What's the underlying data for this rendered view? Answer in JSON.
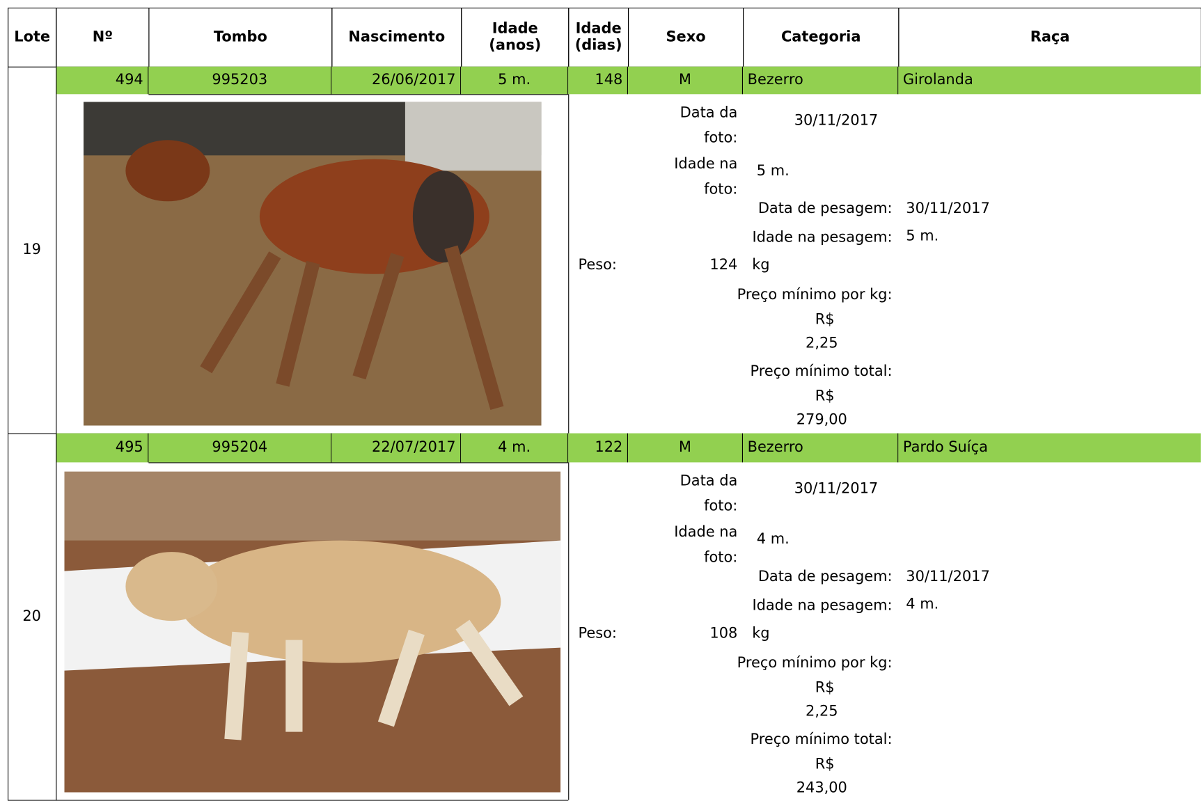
{
  "header": {
    "columns": [
      "Lote",
      "Nº",
      "Tombo",
      "Nascimento",
      "Idade (anos)",
      "Idade (dias)",
      "Sexo",
      "Categoria",
      "Raça"
    ]
  },
  "lots": [
    {
      "lote": "19",
      "numero": "494",
      "tombo": "995203",
      "nascimento": "26/06/2017",
      "idade_anos": "5 m.",
      "idade_dias": "148",
      "sexo": "M",
      "categoria": "Bezerro",
      "raca": "Girolanda",
      "data_foto_label": "Data da foto:",
      "data_foto": "30/11/2017",
      "idade_foto_label": "Idade na foto:",
      "idade_foto": "5 m.",
      "data_pesagem_label": "Data de pesagem:",
      "data_pesagem": "30/11/2017",
      "idade_pesagem_label": "Idade na pesagem:",
      "idade_pesagem": "5 m.",
      "peso_label": "Peso:",
      "peso": "124",
      "peso_unit": "kg",
      "preco_kg_label": "Preço mínimo por kg:",
      "preco_kg_currency": "R$",
      "preco_kg": "2,25",
      "preco_total_label": "Preço mínimo total:",
      "preco_total_currency": "R$",
      "preco_total": "279,00"
    },
    {
      "lote": "20",
      "numero": "495",
      "tombo": "995204",
      "nascimento": "22/07/2017",
      "idade_anos": "4 m.",
      "idade_dias": "122",
      "sexo": "M",
      "categoria": "Bezerro",
      "raca": "Pardo Suíça",
      "data_foto_label": "Data da foto:",
      "data_foto": "30/11/2017",
      "idade_foto_label": "Idade na foto:",
      "idade_foto": "4 m.",
      "data_pesagem_label": "Data de pesagem:",
      "data_pesagem": "30/11/2017",
      "idade_pesagem_label": "Idade na pesagem:",
      "idade_pesagem": "4 m.",
      "peso_label": "Peso:",
      "peso": "108",
      "peso_unit": "kg",
      "preco_kg_label": "Preço mínimo por kg:",
      "preco_kg_currency": "R$",
      "preco_kg": "2,25",
      "preco_total_label": "Preço mínimo total:",
      "preco_total_currency": "R$",
      "preco_total": "243,00"
    }
  ]
}
